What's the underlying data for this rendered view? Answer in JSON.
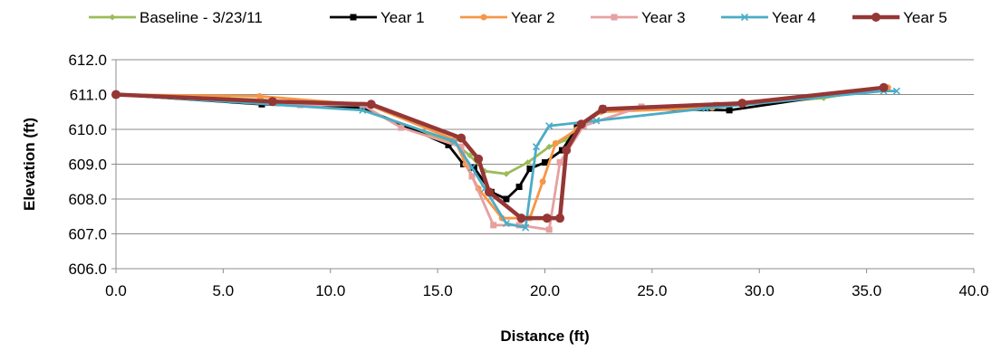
{
  "chart_data": {
    "type": "line",
    "title": "",
    "xlabel": "Distance (ft)",
    "ylabel": "Elevation (ft)",
    "xlim": [
      0,
      40
    ],
    "ylim": [
      606,
      612
    ],
    "xticks": [
      "0.0",
      "5.0",
      "10.0",
      "15.0",
      "20.0",
      "25.0",
      "30.0",
      "35.0",
      "40.0"
    ],
    "yticks": [
      "606.0",
      "607.0",
      "608.0",
      "609.0",
      "610.0",
      "611.0",
      "612.0"
    ],
    "grid": "horizontal",
    "legend_position": "top",
    "series": [
      {
        "name": "Baseline - 3/23/11",
        "color": "#9BBB59",
        "marker": "diamond",
        "points": [
          [
            0,
            611.0
          ],
          [
            6.8,
            610.85
          ],
          [
            11.5,
            610.58
          ],
          [
            15.8,
            609.6
          ],
          [
            16.5,
            609.25
          ],
          [
            17.2,
            608.8
          ],
          [
            18.2,
            608.72
          ],
          [
            19.2,
            609.05
          ],
          [
            20.2,
            609.5
          ],
          [
            21.0,
            609.7
          ],
          [
            22.7,
            610.6
          ],
          [
            28.0,
            610.65
          ],
          [
            33.0,
            610.9
          ],
          [
            35.8,
            611.2
          ]
        ]
      },
      {
        "name": "Year 1",
        "color": "#000000",
        "marker": "square",
        "points": [
          [
            0,
            611.0
          ],
          [
            6.8,
            610.72
          ],
          [
            11.5,
            610.62
          ],
          [
            15.5,
            609.55
          ],
          [
            16.2,
            609.0
          ],
          [
            16.7,
            608.9
          ],
          [
            17.5,
            608.2
          ],
          [
            18.2,
            608.0
          ],
          [
            18.8,
            608.35
          ],
          [
            19.3,
            608.87
          ],
          [
            20.0,
            609.05
          ],
          [
            20.8,
            609.4
          ],
          [
            21.5,
            610.05
          ],
          [
            22.7,
            610.6
          ],
          [
            28.6,
            610.55
          ],
          [
            35.8,
            611.2
          ]
        ]
      },
      {
        "name": "Year 2",
        "color": "#F79646",
        "marker": "circle",
        "points": [
          [
            0,
            611.0
          ],
          [
            6.7,
            610.95
          ],
          [
            11.8,
            610.7
          ],
          [
            15.8,
            609.7
          ],
          [
            16.3,
            609.0
          ],
          [
            16.9,
            608.3
          ],
          [
            18.0,
            607.45
          ],
          [
            19.3,
            607.45
          ],
          [
            19.9,
            608.5
          ],
          [
            20.5,
            609.6
          ],
          [
            21.5,
            610.0
          ],
          [
            22.6,
            610.5
          ],
          [
            27.8,
            610.62
          ],
          [
            36.0,
            611.2
          ]
        ]
      },
      {
        "name": "Year 3",
        "color": "#E6A0A0",
        "marker": "square",
        "points": [
          [
            0,
            611.0
          ],
          [
            8.6,
            610.7
          ],
          [
            11.5,
            610.7
          ],
          [
            13.3,
            610.05
          ],
          [
            16.1,
            609.5
          ],
          [
            16.6,
            608.65
          ],
          [
            17.6,
            607.25
          ],
          [
            18.8,
            607.25
          ],
          [
            20.2,
            607.12
          ],
          [
            20.7,
            609.05
          ],
          [
            21.8,
            610.1
          ],
          [
            24.5,
            610.65
          ],
          [
            28.0,
            610.7
          ],
          [
            35.8,
            611.2
          ]
        ]
      },
      {
        "name": "Year 4",
        "color": "#4BACC6",
        "marker": "x",
        "points": [
          [
            0,
            611.0
          ],
          [
            11.5,
            610.55
          ],
          [
            15.8,
            609.65
          ],
          [
            16.6,
            608.9
          ],
          [
            17.2,
            608.3
          ],
          [
            18.2,
            607.3
          ],
          [
            19.1,
            607.18
          ],
          [
            19.6,
            609.5
          ],
          [
            20.2,
            610.1
          ],
          [
            22.4,
            610.25
          ],
          [
            27.5,
            610.6
          ],
          [
            35.8,
            611.1
          ],
          [
            36.4,
            611.1
          ]
        ]
      },
      {
        "name": "Year 5",
        "color": "#953735",
        "marker": "circle",
        "points": [
          [
            0,
            611.0
          ],
          [
            7.3,
            610.8
          ],
          [
            11.9,
            610.72
          ],
          [
            16.1,
            609.75
          ],
          [
            16.9,
            609.15
          ],
          [
            17.4,
            608.2
          ],
          [
            18.9,
            607.45
          ],
          [
            20.1,
            607.45
          ],
          [
            20.7,
            607.45
          ],
          [
            21.0,
            609.4
          ],
          [
            21.7,
            610.15
          ],
          [
            22.7,
            610.58
          ],
          [
            29.2,
            610.75
          ],
          [
            35.8,
            611.2
          ]
        ]
      }
    ]
  }
}
